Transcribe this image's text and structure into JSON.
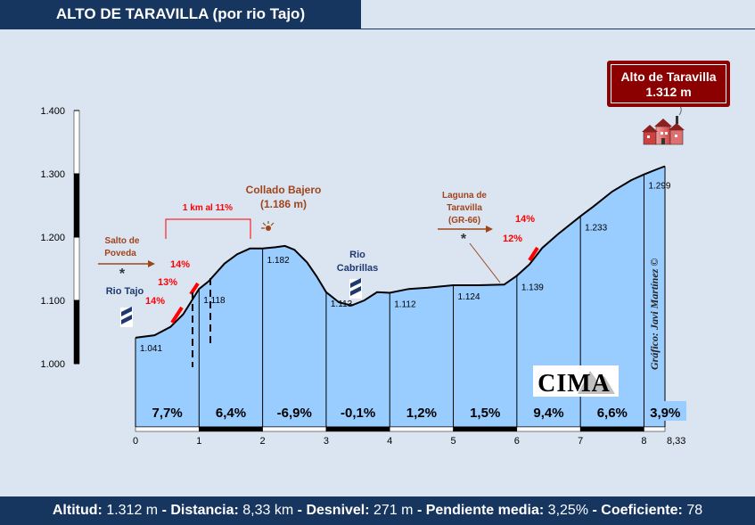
{
  "title": "ALTO DE TARAVILLA (por rio Tajo)",
  "summit": {
    "line1": "Alto de Taravilla",
    "line2": "1.312 m"
  },
  "footer": {
    "altitud_label": "Altitud:",
    "altitud_value": "1.312 m",
    "distancia_label": "Distancia:",
    "distancia_value": "8,33 km",
    "desnivel_label": "Desnivel:",
    "desnivel_value": "271 m",
    "pendiente_label": "Pendiente media:",
    "pendiente_value": "3,25%",
    "coef_label": "Coeficiente:",
    "coef_value": "78",
    "sep": "-"
  },
  "credit": "Gráfico: Javi Martínez ©",
  "logo": "CIMA",
  "colors": {
    "fill": "#99ccff",
    "dark": "#16355f",
    "red": "#ff0000",
    "brown": "#a0441a",
    "box": "#8b0000"
  },
  "annotations": {
    "salto_line1": "Salto de",
    "salto_line2": "Poveda",
    "rio_tajo": "Rio Tajo",
    "km_11": "1 km al 11%",
    "collado_line1": "Collado Bajero",
    "collado_line2": "(1.186 m)",
    "rio_cab_line1": "Rio",
    "rio_cab_line2": "Cabrillas",
    "laguna_line1": "Laguna de",
    "laguna_line2": "Taravilla",
    "laguna_line3": "(GR-66)",
    "star": "*",
    "steep": [
      "14%",
      "13%",
      "14%",
      "14%",
      "12%"
    ]
  },
  "chart_data": {
    "type": "area",
    "title": "ALTO DE TARAVILLA (por rio Tajo)",
    "xlabel": "",
    "ylabel": "",
    "xlim": [
      0,
      8.33
    ],
    "ylim": [
      1000,
      1400
    ],
    "x_ticks": [
      0,
      1,
      2,
      3,
      4,
      5,
      6,
      7,
      8,
      8.33
    ],
    "x_tick_labels": [
      "0",
      "1",
      "2",
      "3",
      "4",
      "5",
      "6",
      "7",
      "8",
      "8,33"
    ],
    "y_ticks": [
      1000,
      1100,
      1200,
      1300,
      1400
    ],
    "y_tick_labels": [
      "1.000",
      "1.100",
      "1.200",
      "1.300",
      "1.400"
    ],
    "profile": [
      {
        "x": 0,
        "y": 1041
      },
      {
        "x": 0.3,
        "y": 1045
      },
      {
        "x": 0.55,
        "y": 1058
      },
      {
        "x": 0.75,
        "y": 1078
      },
      {
        "x": 1,
        "y": 1118
      },
      {
        "x": 1.15,
        "y": 1130
      },
      {
        "x": 1.4,
        "y": 1158
      },
      {
        "x": 1.6,
        "y": 1173
      },
      {
        "x": 1.8,
        "y": 1182
      },
      {
        "x": 2,
        "y": 1182
      },
      {
        "x": 2.2,
        "y": 1184
      },
      {
        "x": 2.35,
        "y": 1186
      },
      {
        "x": 2.5,
        "y": 1180
      },
      {
        "x": 2.7,
        "y": 1160
      },
      {
        "x": 2.85,
        "y": 1138
      },
      {
        "x": 3,
        "y": 1113
      },
      {
        "x": 3.2,
        "y": 1097
      },
      {
        "x": 3.4,
        "y": 1092
      },
      {
        "x": 3.6,
        "y": 1100
      },
      {
        "x": 3.8,
        "y": 1113
      },
      {
        "x": 4,
        "y": 1112
      },
      {
        "x": 4.3,
        "y": 1118
      },
      {
        "x": 4.6,
        "y": 1120
      },
      {
        "x": 5,
        "y": 1124
      },
      {
        "x": 5.4,
        "y": 1124
      },
      {
        "x": 5.8,
        "y": 1125
      },
      {
        "x": 6,
        "y": 1139
      },
      {
        "x": 6.2,
        "y": 1157
      },
      {
        "x": 6.4,
        "y": 1183
      },
      {
        "x": 6.65,
        "y": 1205
      },
      {
        "x": 7,
        "y": 1233
      },
      {
        "x": 7.2,
        "y": 1248
      },
      {
        "x": 7.5,
        "y": 1272
      },
      {
        "x": 7.8,
        "y": 1290
      },
      {
        "x": 8,
        "y": 1299
      },
      {
        "x": 8.2,
        "y": 1307
      },
      {
        "x": 8.33,
        "y": 1312
      }
    ],
    "km_points": [
      {
        "km": 1,
        "alt": 1118,
        "label": "1.118"
      },
      {
        "km": 2,
        "alt": 1182,
        "label": "1.182"
      },
      {
        "km": 3,
        "alt": 1113,
        "label": "1.113"
      },
      {
        "km": 4,
        "alt": 1112,
        "label": "1.112"
      },
      {
        "km": 5,
        "alt": 1124,
        "label": "1.124"
      },
      {
        "km": 6,
        "alt": 1139,
        "label": "1.139"
      },
      {
        "km": 7,
        "alt": 1233,
        "label": "1.233"
      },
      {
        "km": 8,
        "alt": 1299,
        "label": "1.299"
      }
    ],
    "start_label": "1.041",
    "segments": [
      {
        "from": 0,
        "to": 1,
        "grade": "7,7%"
      },
      {
        "from": 1,
        "to": 2,
        "grade": "6,4%"
      },
      {
        "from": 2,
        "to": 3,
        "grade": "-6,9%"
      },
      {
        "from": 3,
        "to": 4,
        "grade": "-0,1%"
      },
      {
        "from": 4,
        "to": 5,
        "grade": "1,2%"
      },
      {
        "from": 5,
        "to": 6,
        "grade": "1,5%"
      },
      {
        "from": 6,
        "to": 7,
        "grade": "9,4%"
      },
      {
        "from": 7,
        "to": 8,
        "grade": "6,6%"
      },
      {
        "from": 8,
        "to": 8.33,
        "grade": "3,9%"
      }
    ]
  }
}
